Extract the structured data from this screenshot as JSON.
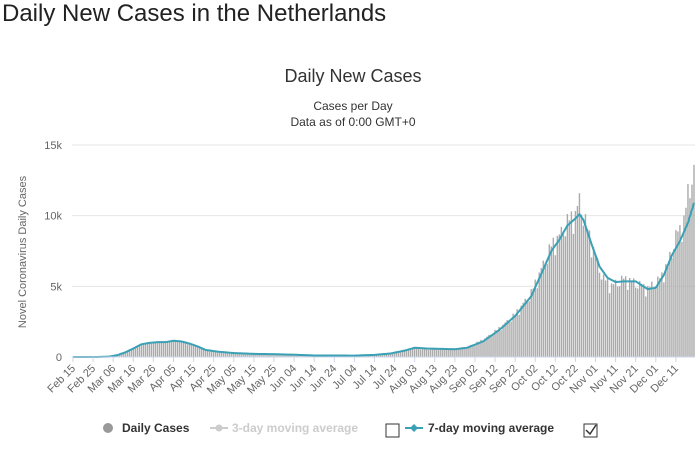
{
  "page": {
    "title": "Daily New Cases in the Netherlands"
  },
  "chart_data": {
    "type": "bar",
    "title": "Daily New Cases",
    "subtitle_lines": [
      "Cases per Day",
      "Data as of 0:00 GMT+0"
    ],
    "ylabel": "Novel Coronavirus Daily Cases",
    "ylim": [
      0,
      15000
    ],
    "yticks": [
      0,
      5000,
      10000,
      15000
    ],
    "ytick_labels": [
      "0",
      "5k",
      "10k",
      "15k"
    ],
    "grid": true,
    "x_tick_labels": [
      "Feb 15",
      "Feb 25",
      "Mar 06",
      "Mar 16",
      "Mar 26",
      "Apr 05",
      "Apr 15",
      "Apr 25",
      "May 05",
      "May 15",
      "May 25",
      "Jun 04",
      "Jun 14",
      "Jun 24",
      "Jul 04",
      "Jul 14",
      "Jul 24",
      "Aug 03",
      "Aug 13",
      "Aug 23",
      "Sep 02",
      "Sep 12",
      "Sep 22",
      "Oct 02",
      "Oct 12",
      "Oct 22",
      "Nov 01",
      "Nov 11",
      "Nov 21",
      "Dec 01",
      "Dec 11"
    ],
    "x_start": "Feb 15",
    "days": 310,
    "legend_position": "bottom",
    "colors": {
      "bars": "#aaaaaa",
      "moving_avg_7": "#3aa0b5",
      "moving_avg_3": "#cccccc",
      "gridline": "#e6e6e6"
    },
    "series": [
      {
        "name": "Daily Cases",
        "keypoints": [
          [
            0,
            0
          ],
          [
            12,
            0
          ],
          [
            18,
            40
          ],
          [
            22,
            150
          ],
          [
            26,
            350
          ],
          [
            30,
            650
          ],
          [
            34,
            900
          ],
          [
            38,
            1050
          ],
          [
            42,
            1050
          ],
          [
            46,
            1000
          ],
          [
            50,
            1200
          ],
          [
            54,
            1100
          ],
          [
            58,
            950
          ],
          [
            62,
            750
          ],
          [
            66,
            500
          ],
          [
            72,
            380
          ],
          [
            80,
            250
          ],
          [
            90,
            200
          ],
          [
            100,
            180
          ],
          [
            110,
            150
          ],
          [
            120,
            100
          ],
          [
            140,
            90
          ],
          [
            150,
            150
          ],
          [
            158,
            250
          ],
          [
            165,
            450
          ],
          [
            170,
            650
          ],
          [
            176,
            550
          ],
          [
            190,
            550
          ],
          [
            196,
            700
          ],
          [
            204,
            1200
          ],
          [
            212,
            2000
          ],
          [
            220,
            3000
          ],
          [
            228,
            4500
          ],
          [
            234,
            6500
          ],
          [
            238,
            7800
          ],
          [
            242,
            8500
          ],
          [
            246,
            9500
          ],
          [
            250,
            10000
          ],
          [
            252,
            11000
          ],
          [
            256,
            9000
          ],
          [
            260,
            7000
          ],
          [
            264,
            5500
          ],
          [
            268,
            5000
          ],
          [
            274,
            5500
          ],
          [
            280,
            5200
          ],
          [
            286,
            4800
          ],
          [
            292,
            5500
          ],
          [
            296,
            6500
          ],
          [
            300,
            8500
          ],
          [
            304,
            9500
          ],
          [
            306,
            11500
          ],
          [
            308,
            12700
          ],
          [
            309,
            12900
          ]
        ]
      },
      {
        "name": "3-day moving average",
        "visible": false
      },
      {
        "name": "7-day moving average",
        "keypoints": [
          [
            0,
            0
          ],
          [
            12,
            0
          ],
          [
            18,
            30
          ],
          [
            22,
            130
          ],
          [
            26,
            330
          ],
          [
            30,
            600
          ],
          [
            34,
            900
          ],
          [
            38,
            1000
          ],
          [
            42,
            1050
          ],
          [
            46,
            1050
          ],
          [
            50,
            1150
          ],
          [
            54,
            1100
          ],
          [
            58,
            950
          ],
          [
            62,
            750
          ],
          [
            66,
            500
          ],
          [
            72,
            380
          ],
          [
            80,
            280
          ],
          [
            90,
            220
          ],
          [
            100,
            200
          ],
          [
            110,
            160
          ],
          [
            120,
            110
          ],
          [
            140,
            100
          ],
          [
            150,
            150
          ],
          [
            158,
            250
          ],
          [
            165,
            450
          ],
          [
            170,
            650
          ],
          [
            176,
            600
          ],
          [
            190,
            550
          ],
          [
            196,
            650
          ],
          [
            204,
            1100
          ],
          [
            212,
            1900
          ],
          [
            220,
            2900
          ],
          [
            228,
            4300
          ],
          [
            234,
            6200
          ],
          [
            238,
            7500
          ],
          [
            242,
            8300
          ],
          [
            246,
            9300
          ],
          [
            250,
            9800
          ],
          [
            252,
            10100
          ],
          [
            254,
            9700
          ],
          [
            258,
            8000
          ],
          [
            262,
            6400
          ],
          [
            266,
            5600
          ],
          [
            270,
            5300
          ],
          [
            274,
            5350
          ],
          [
            280,
            5350
          ],
          [
            286,
            4800
          ],
          [
            290,
            4900
          ],
          [
            294,
            5800
          ],
          [
            298,
            7200
          ],
          [
            302,
            8200
          ],
          [
            306,
            9500
          ],
          [
            309,
            10900
          ]
        ]
      }
    ],
    "legend": {
      "daily": "Daily Cases",
      "ma3": "3-day moving average",
      "ma7": "7-day moving average"
    }
  }
}
